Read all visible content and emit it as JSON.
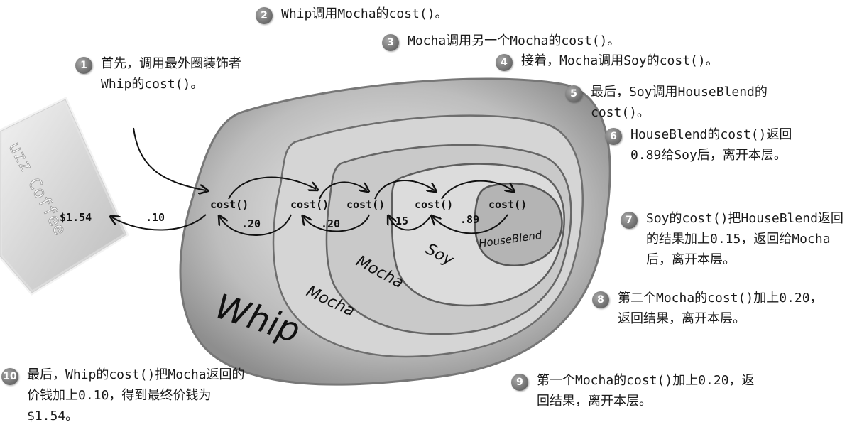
{
  "steps": [
    {
      "num": "1",
      "text": "首先，调用最外圈装饰者Whip的cost()。"
    },
    {
      "num": "2",
      "text": "Whip调用Mocha的cost()。"
    },
    {
      "num": "3",
      "text": "Mocha调用另一个Mocha的cost()。"
    },
    {
      "num": "4",
      "text": "接着，Mocha调用Soy的cost()。"
    },
    {
      "num": "5",
      "text": "最后，Soy调用HouseBlend的cost()。"
    },
    {
      "num": "6",
      "text": "HouseBlend的cost()返回0.89给Soy后，离开本层。"
    },
    {
      "num": "7",
      "text": "Soy的cost()把HouseBlend返回的结果加上0.15，返回给Mocha后，离开本层。"
    },
    {
      "num": "8",
      "text": "第二个Mocha的cost()加上0.20，返回结果，离开本层。"
    },
    {
      "num": "9",
      "text": "第一个Mocha的cost()加上0.20，返回结果，离开本层。"
    },
    {
      "num": "10",
      "text": "最后，Whip的cost()把Mocha返回的价钱加上0.10，得到最终价钱为$1.54。"
    }
  ],
  "layers": {
    "whip": "Whip",
    "mocha_outer": "Mocha",
    "mocha_inner": "Mocha",
    "soy": "Soy",
    "houseblend": "HouseBlend"
  },
  "cost_label": "cost()",
  "return_values": {
    "houseblend": ".89",
    "soy": ".15",
    "mocha_inner": ".20",
    "mocha_outer": ".20",
    "whip": ".10"
  },
  "final_price": "$1.54",
  "napkin_text": "uzz Coffee"
}
